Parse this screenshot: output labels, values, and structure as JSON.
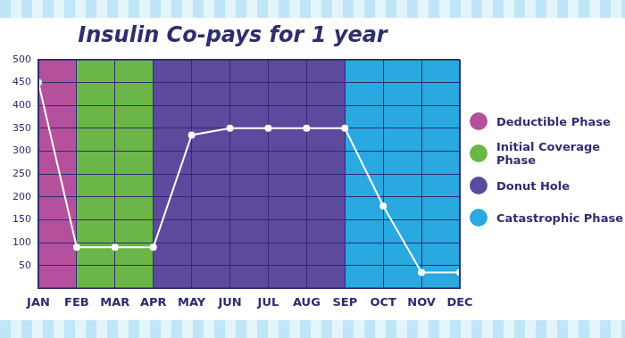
{
  "chart_data": {
    "type": "line",
    "title": "Insulin Co-pays for 1 year",
    "categories": [
      "JAN",
      "FEB",
      "MAR",
      "APR",
      "MAY",
      "JUN",
      "JUL",
      "AUG",
      "SEP",
      "OCT",
      "NOV",
      "DEC"
    ],
    "values": [
      450,
      90,
      90,
      90,
      335,
      350,
      350,
      350,
      350,
      180,
      35,
      35
    ],
    "color": "#ffffff",
    "marker": "circle",
    "ylim": [
      0,
      500
    ],
    "yticks": [
      50,
      100,
      150,
      200,
      250,
      300,
      350,
      400,
      450,
      500
    ],
    "grid": true,
    "legend": "right",
    "phases": [
      {
        "name": "Deductible Phase",
        "color": "#b5509c",
        "start": "JAN",
        "end": "FEB"
      },
      {
        "name": "Initial Coverage Phase",
        "color": "#6bb648",
        "start": "FEB",
        "end": "APR"
      },
      {
        "name": "Donut Hole",
        "color": "#5c4a9e",
        "start": "APR",
        "end": "SEP"
      },
      {
        "name": "Catastrophic Phase",
        "color": "#29a9e0",
        "start": "SEP",
        "end": "DEC"
      }
    ]
  }
}
